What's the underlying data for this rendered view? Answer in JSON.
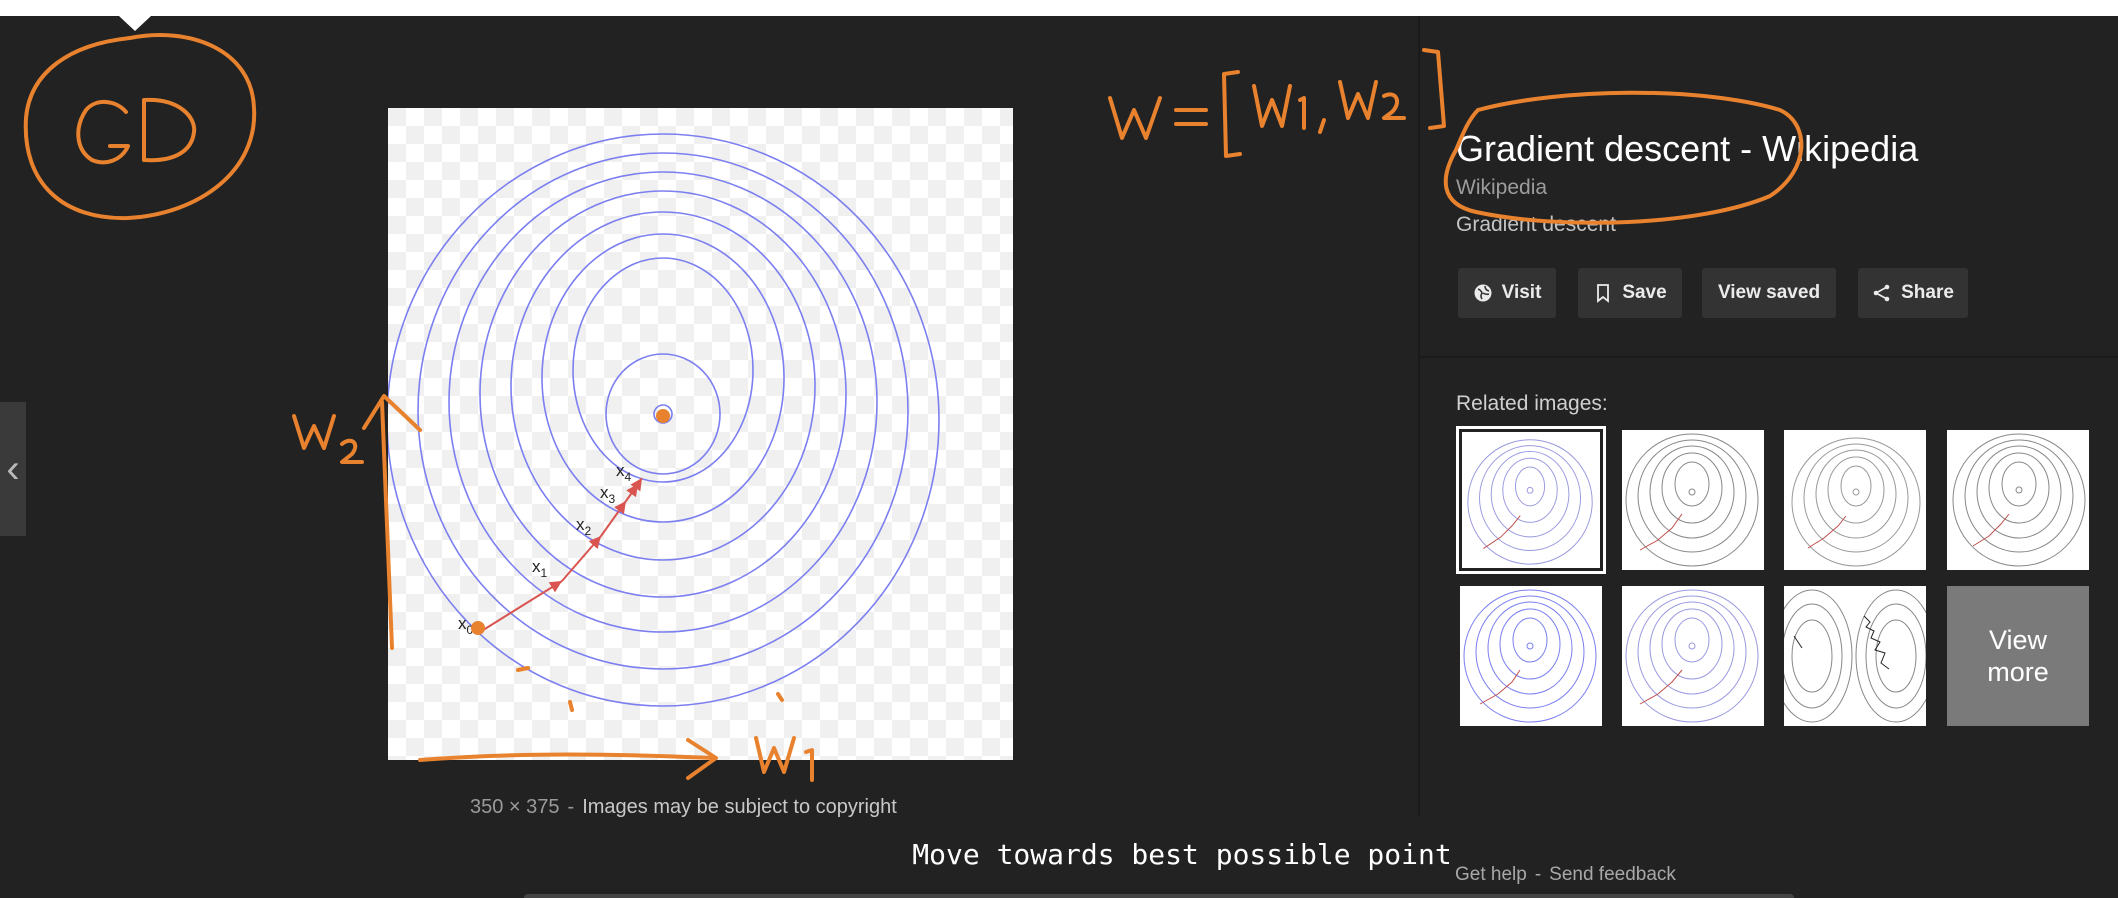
{
  "result": {
    "title": "Gradient descent - Wikipedia",
    "source": "Wikipedia",
    "subtitle": "Gradient descent"
  },
  "actions": {
    "visit": "Visit",
    "save": "Save",
    "view_saved": "View saved",
    "share": "Share"
  },
  "preview": {
    "dimensions": "350 × 375",
    "separator": "-",
    "notice": "Images may be subject to copyright",
    "point_labels": [
      "x0",
      "x1",
      "x2",
      "x3",
      "x4"
    ]
  },
  "related": {
    "label": "Related images:",
    "view_more": [
      "View",
      "more"
    ]
  },
  "caption": "Move towards best possible point",
  "footer": {
    "help": "Get help",
    "separator": "-",
    "feedback": "Send feedback"
  },
  "annotations": {
    "gd": "GD",
    "w_vector": "w = [w1 , w2]",
    "w1_axis": "w1",
    "w2_axis": "w2"
  },
  "colors": {
    "background": "#222222",
    "contour": "#7b7ff0",
    "path": "#d9534f",
    "ink": "#e8822e"
  },
  "icons": [
    "globe-icon",
    "bookmark-icon",
    "share-icon",
    "chevron-left-icon"
  ]
}
